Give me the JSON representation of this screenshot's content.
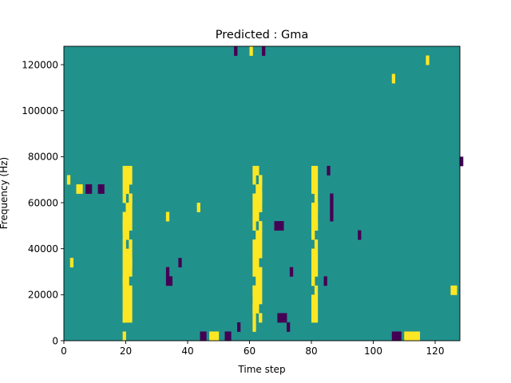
{
  "chart_data": {
    "type": "heatmap",
    "title": "Predicted : Gma",
    "xlabel": "Time step",
    "ylabel": "Frequency (Hz)",
    "xlim": [
      0,
      128
    ],
    "ylim": [
      0,
      128000
    ],
    "x_ticks": [
      0,
      20,
      40,
      60,
      80,
      100,
      120
    ],
    "x_tick_labels": [
      "0",
      "20",
      "40",
      "60",
      "80",
      "100",
      "120"
    ],
    "y_ticks": [
      0,
      20000,
      40000,
      60000,
      80000,
      100000,
      120000
    ],
    "y_tick_labels": [
      "0",
      "20000",
      "40000",
      "60000",
      "80000",
      "100000",
      "120000"
    ],
    "grid": false,
    "legend": "none",
    "value_levels": [
      -1,
      0,
      1
    ],
    "colors": {
      "-1": "#440154",
      "0": "#21918c",
      "1": "#fde725"
    },
    "background_value": 0,
    "cell_size": {
      "time_steps": 1,
      "frequency_hz": 4000
    },
    "note_columns_yellow": [
      19,
      20,
      21,
      61,
      62,
      63,
      80,
      81
    ],
    "sparse_cells": [
      {
        "t": 19,
        "f": 0,
        "v": 1
      },
      {
        "t": 19,
        "f": 8000,
        "v": 1
      },
      {
        "t": 19,
        "f": 16000,
        "v": 1
      },
      {
        "t": 19,
        "f": 24000,
        "v": 1
      },
      {
        "t": 19,
        "f": 36000,
        "v": 1
      },
      {
        "t": 19,
        "f": 48000,
        "v": 1
      },
      {
        "t": 20,
        "f": 20000,
        "v": 1
      },
      {
        "t": 20,
        "f": 44000,
        "v": 1
      },
      {
        "t": 20,
        "f": 56000,
        "v": 1
      },
      {
        "t": 20,
        "f": 64000,
        "v": 1
      },
      {
        "t": 21,
        "f": 32000,
        "v": 1
      },
      {
        "t": 21,
        "f": 60000,
        "v": 1
      },
      {
        "t": 61,
        "f": 4000,
        "v": 1
      },
      {
        "t": 61,
        "f": 12000,
        "v": 1
      },
      {
        "t": 61,
        "f": 20000,
        "v": 1
      },
      {
        "t": 62,
        "f": 28000,
        "v": 1
      },
      {
        "t": 62,
        "f": 40000,
        "v": 1
      },
      {
        "t": 62,
        "f": 52000,
        "v": 1
      },
      {
        "t": 63,
        "f": 60000,
        "v": 1
      },
      {
        "t": 63,
        "f": 68000,
        "v": 1
      },
      {
        "t": 60,
        "f": 124000,
        "v": 1
      },
      {
        "t": 80,
        "f": 12000,
        "v": 1
      },
      {
        "t": 80,
        "f": 24000,
        "v": 1
      },
      {
        "t": 80,
        "f": 36000,
        "v": 1
      },
      {
        "t": 81,
        "f": 48000,
        "v": 1
      },
      {
        "t": 81,
        "f": 56000,
        "v": 1
      },
      {
        "t": 81,
        "f": 64000,
        "v": 1
      },
      {
        "t": 110,
        "f": 0,
        "v": 1
      },
      {
        "t": 111,
        "f": 0,
        "v": 1
      },
      {
        "t": 112,
        "f": 0,
        "v": 1
      },
      {
        "t": 113,
        "f": 0,
        "v": 1
      },
      {
        "t": 114,
        "f": 0,
        "v": 1
      },
      {
        "t": 47,
        "f": 0,
        "v": 1
      },
      {
        "t": 48,
        "f": 0,
        "v": 1
      },
      {
        "t": 49,
        "f": 0,
        "v": 1
      },
      {
        "t": 125,
        "f": 20000,
        "v": 1
      },
      {
        "t": 126,
        "f": 20000,
        "v": 1
      },
      {
        "t": 4,
        "f": 64000,
        "v": 1
      },
      {
        "t": 5,
        "f": 64000,
        "v": 1
      },
      {
        "t": 1,
        "f": 68000,
        "v": 1
      },
      {
        "t": 2,
        "f": 32000,
        "v": 1
      },
      {
        "t": 33,
        "f": 52000,
        "v": 1
      },
      {
        "t": 43,
        "f": 56000,
        "v": 1
      },
      {
        "t": 106,
        "f": 112000,
        "v": 1
      },
      {
        "t": 117,
        "f": 120000,
        "v": 1
      },
      {
        "t": 44,
        "f": 0,
        "v": -1
      },
      {
        "t": 45,
        "f": 0,
        "v": -1
      },
      {
        "t": 52,
        "f": 0,
        "v": -1
      },
      {
        "t": 53,
        "f": 0,
        "v": -1
      },
      {
        "t": 106,
        "f": 0,
        "v": -1
      },
      {
        "t": 107,
        "f": 0,
        "v": -1
      },
      {
        "t": 108,
        "f": 0,
        "v": -1
      },
      {
        "t": 69,
        "f": 8000,
        "v": -1
      },
      {
        "t": 70,
        "f": 8000,
        "v": -1
      },
      {
        "t": 71,
        "f": 8000,
        "v": -1
      },
      {
        "t": 72,
        "f": 4000,
        "v": -1
      },
      {
        "t": 68,
        "f": 48000,
        "v": -1
      },
      {
        "t": 69,
        "f": 48000,
        "v": -1
      },
      {
        "t": 70,
        "f": 48000,
        "v": -1
      },
      {
        "t": 7,
        "f": 64000,
        "v": -1
      },
      {
        "t": 8,
        "f": 64000,
        "v": -1
      },
      {
        "t": 11,
        "f": 64000,
        "v": -1
      },
      {
        "t": 12,
        "f": 64000,
        "v": -1
      },
      {
        "t": 86,
        "f": 60000,
        "v": -1
      },
      {
        "t": 86,
        "f": 56000,
        "v": -1
      },
      {
        "t": 86,
        "f": 52000,
        "v": -1
      },
      {
        "t": 85,
        "f": 72000,
        "v": -1
      },
      {
        "t": 84,
        "f": 24000,
        "v": -1
      },
      {
        "t": 33,
        "f": 24000,
        "v": -1
      },
      {
        "t": 34,
        "f": 24000,
        "v": -1
      },
      {
        "t": 33,
        "f": 28000,
        "v": -1
      },
      {
        "t": 37,
        "f": 32000,
        "v": -1
      },
      {
        "t": 56,
        "f": 4000,
        "v": -1
      },
      {
        "t": 73,
        "f": 28000,
        "v": -1
      },
      {
        "t": 95,
        "f": 44000,
        "v": -1
      },
      {
        "t": 128,
        "f": 76000,
        "v": -1
      },
      {
        "t": 55,
        "f": 124000,
        "v": -1
      },
      {
        "t": 64,
        "f": 124000,
        "v": -1
      }
    ]
  }
}
